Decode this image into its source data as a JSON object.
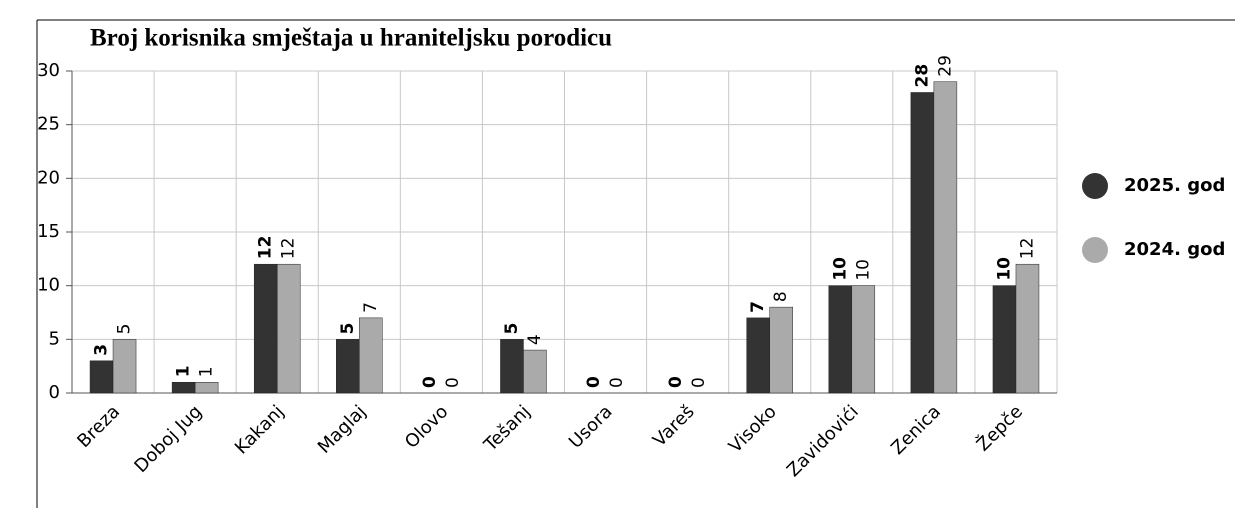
{
  "chart_data": {
    "type": "bar",
    "title": "Broj korisnika smještaja u hraniteljsku porodicu",
    "categories": [
      "Breza",
      "Doboj Jug",
      "Kakanj",
      "Maglaj",
      "Olovo",
      "Tešanj",
      "Usora",
      "Vareš",
      "Visoko",
      "Zavidovići",
      "Zenica",
      "Žepče"
    ],
    "series": [
      {
        "name": "2025. god",
        "color": "#333333",
        "values": [
          3,
          1,
          12,
          5,
          0,
          5,
          0,
          0,
          7,
          10,
          28,
          10
        ]
      },
      {
        "name": "2024. god",
        "color": "#aaaaaa",
        "values": [
          5,
          1,
          12,
          7,
          0,
          4,
          0,
          0,
          8,
          10,
          29,
          12
        ]
      }
    ],
    "ylim": [
      0,
      30
    ],
    "yticks": [
      0,
      5,
      10,
      15,
      20,
      25,
      30
    ],
    "grid": true,
    "legend": "right"
  }
}
